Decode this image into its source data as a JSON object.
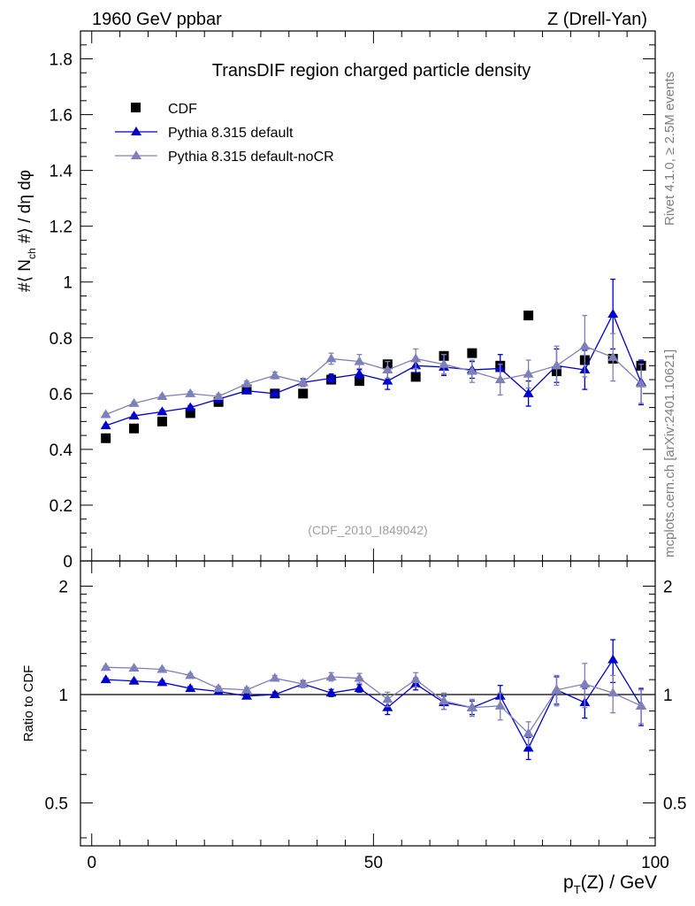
{
  "header": {
    "left": "1960 GeV ppbar",
    "right": "Z (Drell-Yan)"
  },
  "side_labels": {
    "rivet": "Rivet 4.1.0, ≥ 2.5M events",
    "mcplots": "mcplots.cern.ch [arXiv:2401.10621]"
  },
  "colors": {
    "cdf": "#000000",
    "default": "#0000cc",
    "nocr": "#8080b8"
  },
  "chart_data": [
    {
      "type": "scatter",
      "panel": "main",
      "title": "TransDIF region charged particle density",
      "ylabel": "#⟨ N_ch #⟩ / dη dφ",
      "xlabel": "",
      "xlim": [
        -2,
        100
      ],
      "ylim": [
        0,
        1.9
      ],
      "yticks": [
        0,
        0.2,
        0.4,
        0.6,
        0.8,
        1,
        1.2,
        1.4,
        1.6,
        1.8
      ],
      "ytick_labels": [
        "0",
        "0.2",
        "0.4",
        "0.6",
        "0.8",
        "1",
        "1.2",
        "1.4",
        "1.6",
        "1.8"
      ],
      "annotation": "(CDF_2010_I849042)",
      "legend": {
        "placement": "top-left",
        "entries": [
          "CDF",
          "Pythia 8.315 default",
          "Pythia 8.315 default-noCR"
        ]
      },
      "x": [
        2.5,
        7.5,
        12.5,
        17.5,
        22.5,
        27.5,
        32.5,
        37.5,
        42.5,
        47.5,
        52.5,
        57.5,
        62.5,
        67.5,
        72.5,
        77.5,
        82.5,
        87.5,
        92.5,
        97.5
      ],
      "series": [
        {
          "name": "CDF",
          "marker": "square",
          "values": [
            0.44,
            0.475,
            0.5,
            0.53,
            0.57,
            0.615,
            0.6,
            0.6,
            0.65,
            0.645,
            0.705,
            0.66,
            0.735,
            0.745,
            0.7,
            0.88,
            0.68,
            0.72,
            0.725,
            0.7
          ],
          "errors": [
            0,
            0,
            0,
            0,
            0,
            0,
            0,
            0,
            0,
            0,
            0,
            0,
            0,
            0,
            0,
            0,
            0,
            0,
            0,
            0
          ]
        },
        {
          "name": "Pythia 8.315 default",
          "marker": "triangle",
          "values": [
            0.485,
            0.52,
            0.535,
            0.55,
            0.58,
            0.61,
            0.6,
            0.64,
            0.655,
            0.67,
            0.645,
            0.7,
            0.695,
            0.685,
            0.69,
            0.6,
            0.7,
            0.685,
            0.885,
            0.64
          ],
          "errors": [
            0.005,
            0.005,
            0.006,
            0.007,
            0.008,
            0.009,
            0.01,
            0.012,
            0.015,
            0.016,
            0.03,
            0.025,
            0.03,
            0.03,
            0.05,
            0.045,
            0.06,
            0.07,
            0.125,
            0.08
          ]
        },
        {
          "name": "Pythia 8.315 default-noCR",
          "marker": "triangle",
          "values": [
            0.525,
            0.565,
            0.59,
            0.6,
            0.59,
            0.635,
            0.665,
            0.64,
            0.725,
            0.715,
            0.685,
            0.725,
            0.705,
            0.68,
            0.65,
            0.67,
            0.7,
            0.77,
            0.73,
            0.635
          ],
          "errors": [
            0.005,
            0.005,
            0.006,
            0.007,
            0.008,
            0.01,
            0.012,
            0.015,
            0.02,
            0.025,
            0.03,
            0.035,
            0.035,
            0.04,
            0.055,
            0.05,
            0.07,
            0.11,
            0.085,
            0.07
          ]
        }
      ]
    },
    {
      "type": "scatter",
      "panel": "ratio",
      "ylabel": "Ratio to CDF",
      "xlabel": "p_T(Z) / GeV",
      "xlim": [
        -2,
        100
      ],
      "ylim": [
        0.38,
        2.35
      ],
      "yscale": "log",
      "yticks": [
        0.5,
        1,
        2
      ],
      "ytick_labels": [
        "0.5",
        "1",
        "2"
      ],
      "xticks": [
        0,
        50,
        100
      ],
      "xtick_labels": [
        "0",
        "50",
        "100"
      ],
      "reference_line": 1,
      "x": [
        2.5,
        7.5,
        12.5,
        17.5,
        22.5,
        27.5,
        32.5,
        37.5,
        42.5,
        47.5,
        52.5,
        57.5,
        62.5,
        67.5,
        72.5,
        77.5,
        82.5,
        87.5,
        92.5,
        97.5
      ],
      "series": [
        {
          "name": "Pythia 8.315 default",
          "values": [
            1.1,
            1.09,
            1.08,
            1.04,
            1.02,
            0.99,
            1.0,
            1.07,
            1.01,
            1.04,
            0.92,
            1.07,
            0.95,
            0.92,
            0.99,
            0.71,
            1.03,
            0.95,
            1.25,
            0.93
          ],
          "errors": [
            0.01,
            0.01,
            0.012,
            0.013,
            0.014,
            0.015,
            0.016,
            0.02,
            0.023,
            0.025,
            0.04,
            0.04,
            0.04,
            0.04,
            0.07,
            0.05,
            0.09,
            0.09,
            0.17,
            0.11
          ]
        },
        {
          "name": "Pythia 8.315 default-noCR",
          "values": [
            1.19,
            1.185,
            1.175,
            1.13,
            1.04,
            1.03,
            1.11,
            1.07,
            1.12,
            1.11,
            0.97,
            1.1,
            0.96,
            0.92,
            0.93,
            0.78,
            1.03,
            1.07,
            1.01,
            0.93
          ],
          "errors": [
            0.01,
            0.01,
            0.012,
            0.013,
            0.015,
            0.016,
            0.02,
            0.025,
            0.03,
            0.035,
            0.045,
            0.05,
            0.05,
            0.05,
            0.08,
            0.06,
            0.1,
            0.15,
            0.12,
            0.1
          ]
        }
      ]
    }
  ]
}
